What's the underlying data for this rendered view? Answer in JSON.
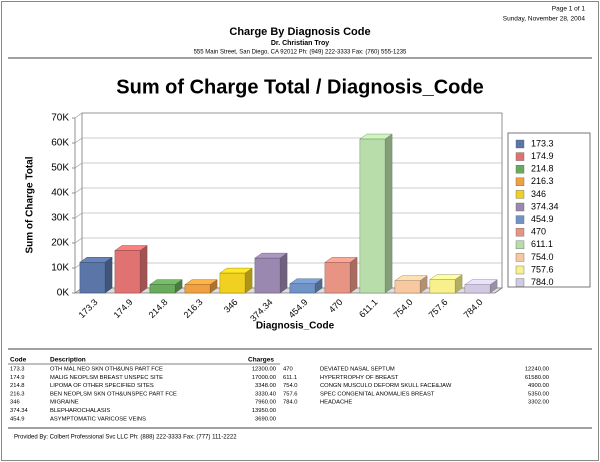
{
  "header": {
    "page": "Page 1 of 1",
    "date": "Sunday, November 28, 2004",
    "title": "Charge By Diagnosis Code",
    "doctor": "Dr. Christian Troy",
    "address": "555 Main Street, San Diego, CA 92012 Ph: (949) 222-3333 Fax: (760) 555-1235"
  },
  "chart_data": {
    "type": "bar3d",
    "title": "Sum of Charge Total / Diagnosis_Code",
    "y_label": "Sum of Charge Total",
    "x_label": "Diagnosis_Code",
    "categories": [
      "173.3",
      "174.9",
      "214.8",
      "216.3",
      "346",
      "374.34",
      "454.9",
      "470",
      "611.1",
      "754.0",
      "757.6",
      "784.0"
    ],
    "values": [
      12300,
      17000,
      3348,
      3330.4,
      7960,
      13950,
      3690,
      12240,
      61580,
      4900,
      5350,
      3302
    ],
    "colors": [
      "#5a76a8",
      "#e07272",
      "#6aaa5c",
      "#f0a040",
      "#f0d020",
      "#9a88b0",
      "#7092c4",
      "#e89484",
      "#b8dcaa",
      "#f8c8a0",
      "#f8f08c",
      "#d2cae2"
    ],
    "ylim": [
      0,
      70000
    ],
    "yticks": [
      {
        "value": 0,
        "label": "0K"
      },
      {
        "value": 10000,
        "label": "10K"
      },
      {
        "value": 20000,
        "label": "20K"
      },
      {
        "value": 30000,
        "label": "30K"
      },
      {
        "value": 40000,
        "label": "40K"
      },
      {
        "value": 50000,
        "label": "50K"
      },
      {
        "value": 60000,
        "label": "60K"
      },
      {
        "value": 70000,
        "label": "70K"
      }
    ],
    "grid": true,
    "legend": "right"
  },
  "table": {
    "header": [
      "Code",
      "Description",
      "Charges"
    ],
    "rows": [
      [
        "173.3",
        "OTH MAL NEO SKN OTH&UNS PART FCE",
        "12300.00"
      ],
      [
        "174.9",
        "MALIG NEOPLSM BREAST UNSPEC SITE",
        "17000.00"
      ],
      [
        "214.8",
        "LIPOMA OF OTHER SPECIFIED SITES",
        "3348.00"
      ],
      [
        "216.3",
        "BEN NEOPLSM SKN OTH&UNSPEC PART FCE",
        "3330.40"
      ],
      [
        "346",
        "MIGRAINE",
        "7960.00"
      ],
      [
        "374.34",
        "BLEPHAROCHALASIS",
        "13950.00"
      ],
      [
        "454.9",
        "ASYMPTOMATIC VARICOSE VEINS",
        "3690.00"
      ],
      [
        "470",
        "DEVIATED NASAL SEPTUM",
        "12240.00"
      ],
      [
        "611.1",
        "HYPERTROPHY OF BREAST",
        "61580.00"
      ],
      [
        "754.0",
        "CONGN MUSCULO DEFORM SKULL FACE&JAW",
        "4900.00"
      ],
      [
        "757.6",
        "SPEC CONGENITAL ANOMALIES BREAST",
        "5350.00"
      ],
      [
        "784.0",
        "HEADACHE",
        "3302.00"
      ]
    ]
  },
  "footer": "Provided By: Colbert Professional Svc LLC Ph: (888) 222-3333 Fax: (777) 111-2222"
}
